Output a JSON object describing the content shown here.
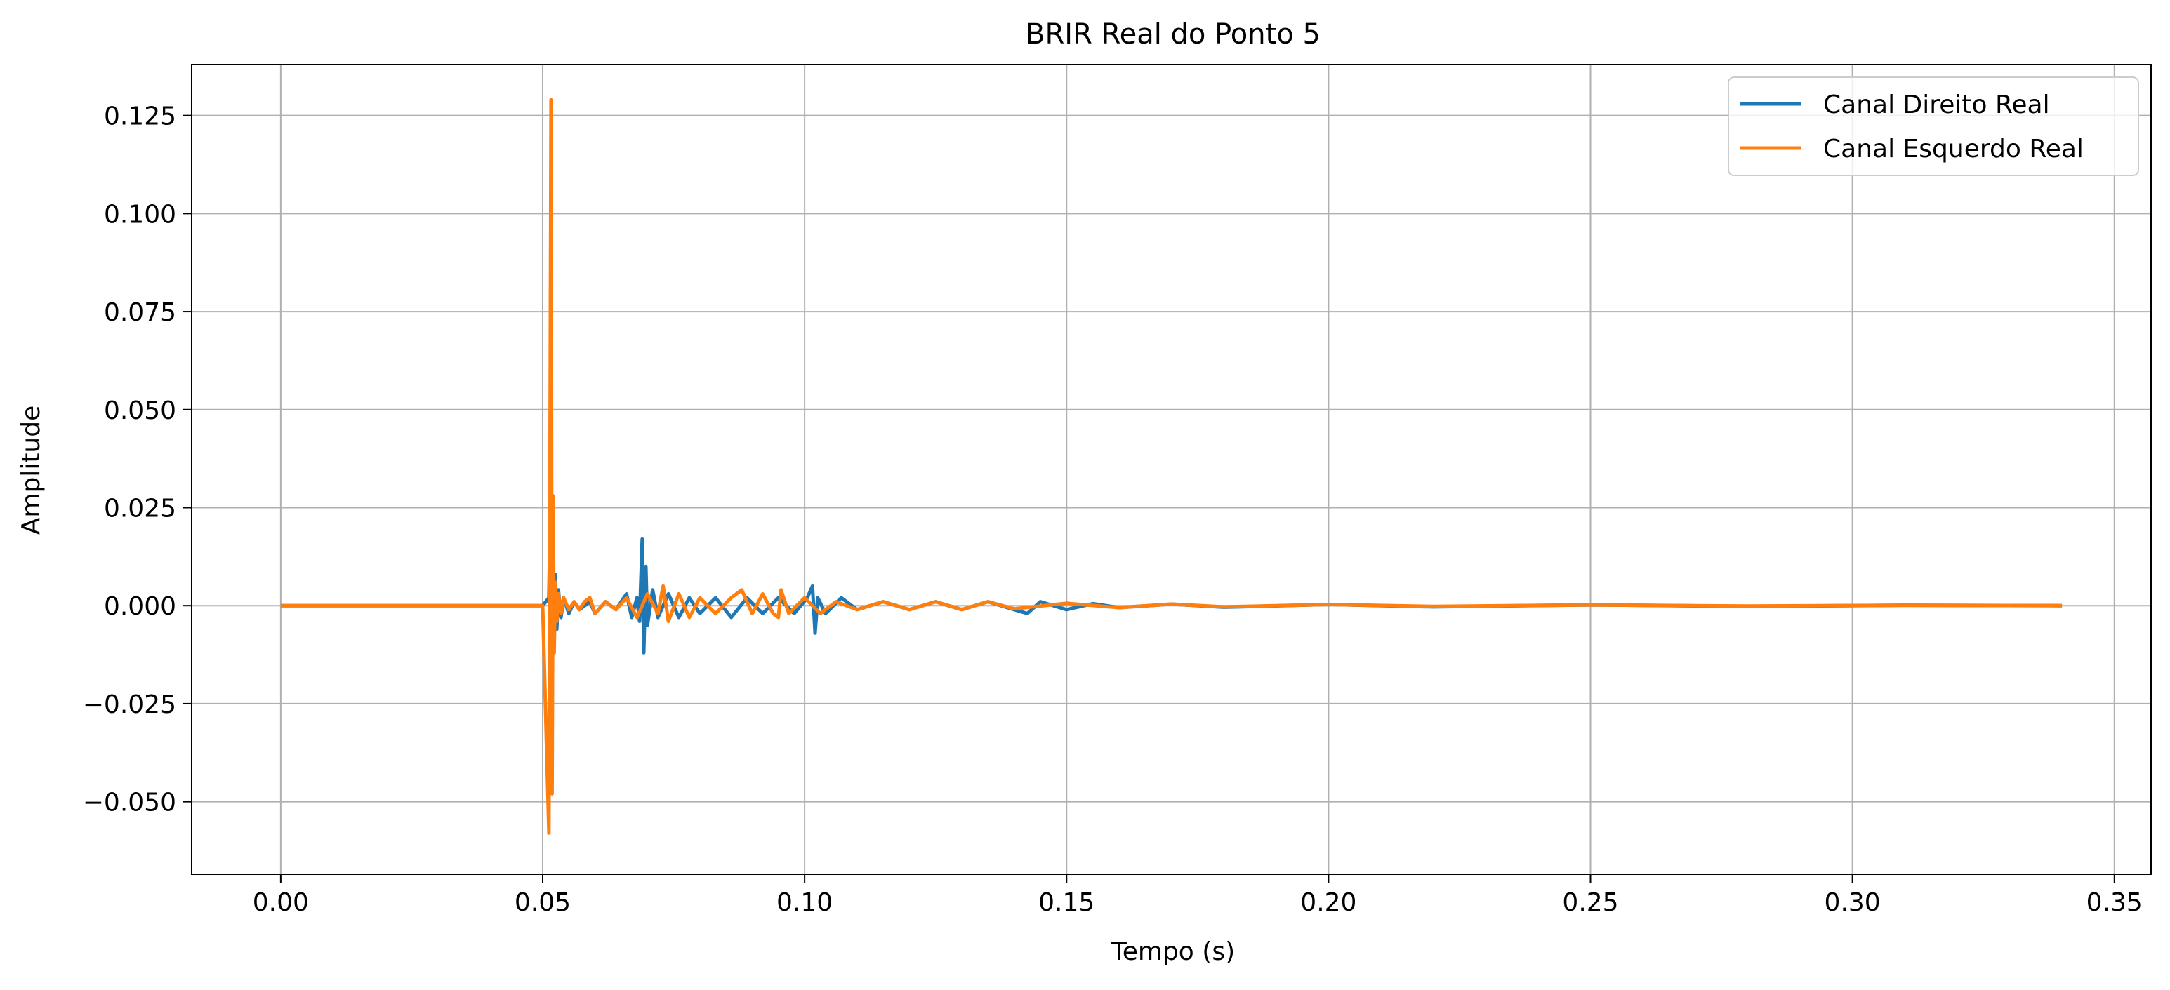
{
  "chart_data": {
    "type": "line",
    "title": "BRIR Real do Ponto 5",
    "xlabel": "Tempo (s)",
    "ylabel": "Amplitude",
    "xlim": [
      -0.017,
      0.357
    ],
    "ylim": [
      -0.0685,
      0.138
    ],
    "x_ticks": [
      0.0,
      0.05,
      0.1,
      0.15,
      0.2,
      0.25,
      0.3,
      0.35
    ],
    "x_tick_labels": [
      "0.00",
      "0.05",
      "0.10",
      "0.15",
      "0.20",
      "0.25",
      "0.30",
      "0.35"
    ],
    "y_ticks": [
      -0.05,
      -0.025,
      0.0,
      0.025,
      0.05,
      0.075,
      0.1,
      0.125
    ],
    "y_tick_labels": [
      "−0.050",
      "−0.025",
      "0.000",
      "0.025",
      "0.050",
      "0.075",
      "0.100",
      "0.125"
    ],
    "grid": true,
    "legend_position": "top-right",
    "series": [
      {
        "name": "Canal Direito Real",
        "color": "#1f77b4",
        "x": [
          0.0,
          0.02,
          0.04,
          0.05,
          0.0512,
          0.0515,
          0.0518,
          0.052,
          0.0522,
          0.0524,
          0.0527,
          0.053,
          0.0535,
          0.054,
          0.055,
          0.056,
          0.057,
          0.058,
          0.059,
          0.06,
          0.062,
          0.064,
          0.066,
          0.067,
          0.068,
          0.0685,
          0.069,
          0.0693,
          0.0697,
          0.07,
          0.071,
          0.072,
          0.074,
          0.076,
          0.078,
          0.08,
          0.083,
          0.086,
          0.089,
          0.092,
          0.095,
          0.098,
          0.1005,
          0.1015,
          0.102,
          0.1025,
          0.104,
          0.107,
          0.11,
          0.115,
          0.12,
          0.125,
          0.13,
          0.135,
          0.14,
          0.1425,
          0.145,
          0.15,
          0.155,
          0.16,
          0.17,
          0.18,
          0.2,
          0.22,
          0.25,
          0.28,
          0.31,
          0.34
        ],
        "y": [
          0.0,
          0.0,
          0.0,
          0.0,
          0.002,
          0.033,
          -0.02,
          0.015,
          -0.01,
          0.008,
          -0.006,
          0.004,
          -0.003,
          0.002,
          -0.002,
          0.001,
          -0.001,
          0.0,
          0.001,
          -0.002,
          0.001,
          -0.001,
          0.003,
          -0.003,
          0.002,
          -0.004,
          0.017,
          -0.012,
          0.01,
          -0.005,
          0.004,
          -0.003,
          0.003,
          -0.003,
          0.002,
          -0.002,
          0.002,
          -0.003,
          0.002,
          -0.002,
          0.002,
          -0.002,
          0.002,
          0.005,
          -0.007,
          0.002,
          -0.002,
          0.002,
          -0.001,
          0.001,
          -0.001,
          0.001,
          -0.001,
          0.001,
          -0.001,
          -0.002,
          0.001,
          -0.001,
          0.0005,
          -0.0005,
          0.0004,
          -0.0004,
          0.0003,
          -0.0003,
          0.0002,
          -0.0002,
          0.0001,
          0.0
        ]
      },
      {
        "name": "Canal Esquerdo Real",
        "color": "#ff7f0e",
        "x": [
          0.0,
          0.02,
          0.04,
          0.05,
          0.0512,
          0.0516,
          0.0518,
          0.052,
          0.0522,
          0.0524,
          0.0527,
          0.053,
          0.0535,
          0.054,
          0.055,
          0.056,
          0.057,
          0.058,
          0.059,
          0.06,
          0.062,
          0.064,
          0.066,
          0.068,
          0.07,
          0.072,
          0.073,
          0.074,
          0.076,
          0.078,
          0.08,
          0.083,
          0.086,
          0.088,
          0.09,
          0.092,
          0.094,
          0.095,
          0.0955,
          0.097,
          0.1,
          0.103,
          0.106,
          0.11,
          0.115,
          0.12,
          0.125,
          0.13,
          0.135,
          0.14,
          0.15,
          0.16,
          0.17,
          0.18,
          0.2,
          0.22,
          0.25,
          0.28,
          0.31,
          0.34
        ],
        "y": [
          0.0,
          0.0,
          0.0,
          0.0,
          -0.058,
          0.129,
          -0.048,
          0.028,
          -0.012,
          0.006,
          -0.004,
          0.003,
          -0.002,
          0.002,
          -0.001,
          0.001,
          -0.001,
          0.001,
          0.002,
          -0.002,
          0.001,
          -0.001,
          0.002,
          -0.003,
          0.003,
          -0.002,
          0.005,
          -0.004,
          0.003,
          -0.003,
          0.002,
          -0.002,
          0.002,
          0.004,
          -0.002,
          0.003,
          -0.002,
          -0.003,
          0.004,
          -0.002,
          0.002,
          -0.002,
          0.001,
          -0.001,
          0.001,
          -0.001,
          0.001,
          -0.001,
          0.001,
          -0.0008,
          0.0006,
          -0.0005,
          0.0004,
          -0.0003,
          0.0003,
          -0.0002,
          0.0002,
          -0.0001,
          0.0001,
          0.0
        ]
      }
    ]
  }
}
